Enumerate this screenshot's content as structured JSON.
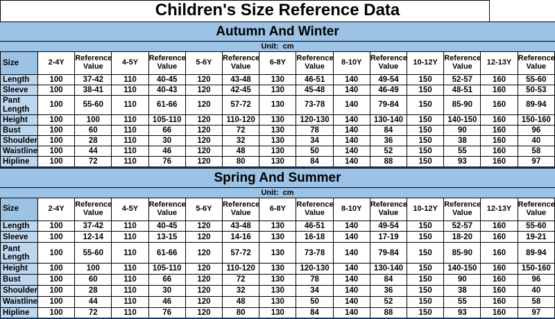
{
  "title": "Children's Size Reference Data",
  "columns": [
    "Size",
    "2-4Y",
    "Reference Value",
    "4-5Y",
    "Reference Value",
    "5-6Y",
    "Reference Value",
    "6-8Y",
    "Reference Value",
    "8-10Y",
    "Reference Value",
    "10-12Y",
    "Reference Value",
    "12-13Y",
    "Reference Value"
  ],
  "sections": [
    {
      "title": "Autumn And Winter",
      "unit_label": "Unit:  cm",
      "rows": [
        {
          "label": "Length",
          "values": [
            "100",
            "37-42",
            "110",
            "40-45",
            "120",
            "43-48",
            "130",
            "46-51",
            "140",
            "49-54",
            "150",
            "52-57",
            "160",
            "55-60"
          ]
        },
        {
          "label": "Sleeve",
          "values": [
            "100",
            "38-41",
            "110",
            "40-43",
            "120",
            "42-45",
            "130",
            "45-48",
            "140",
            "46-49",
            "150",
            "48-51",
            "160",
            "50-53"
          ]
        },
        {
          "label": "Pant Length",
          "values": [
            "100",
            "55-60",
            "110",
            "61-66",
            "120",
            "57-72",
            "130",
            "73-78",
            "140",
            "79-84",
            "150",
            "85-90",
            "160",
            "89-94"
          ]
        },
        {
          "label": "Height",
          "values": [
            "100",
            "100",
            "110",
            "105-110",
            "120",
            "110-120",
            "130",
            "120-130",
            "140",
            "130-140",
            "150",
            "140-150",
            "160",
            "150-160"
          ]
        },
        {
          "label": "Bust",
          "values": [
            "100",
            "60",
            "110",
            "66",
            "120",
            "72",
            "130",
            "78",
            "140",
            "84",
            "150",
            "90",
            "160",
            "96"
          ]
        },
        {
          "label": "Shoulder",
          "values": [
            "100",
            "28",
            "110",
            "30",
            "120",
            "32",
            "130",
            "34",
            "140",
            "36",
            "150",
            "38",
            "160",
            "40"
          ]
        },
        {
          "label": "Waistline",
          "values": [
            "100",
            "44",
            "110",
            "46",
            "120",
            "48",
            "130",
            "50",
            "140",
            "52",
            "150",
            "55",
            "160",
            "58"
          ]
        },
        {
          "label": "Hipline",
          "values": [
            "100",
            "72",
            "110",
            "76",
            "120",
            "80",
            "130",
            "84",
            "140",
            "88",
            "150",
            "93",
            "160",
            "97"
          ]
        }
      ]
    },
    {
      "title": "Spring And Summer",
      "unit_label": "Unit:  cm",
      "rows": [
        {
          "label": "Length",
          "values": [
            "100",
            "37-42",
            "110",
            "40-45",
            "120",
            "43-48",
            "130",
            "46-51",
            "140",
            "49-54",
            "150",
            "52-57",
            "160",
            "55-60"
          ]
        },
        {
          "label": "Sleeve",
          "values": [
            "100",
            "12-14",
            "110",
            "13-15",
            "120",
            "14-16",
            "130",
            "16-18",
            "140",
            "17-19",
            "150",
            "18-20",
            "160",
            "19-21"
          ]
        },
        {
          "label": "Pant Length",
          "values": [
            "100",
            "55-60",
            "110",
            "61-66",
            "120",
            "57-72",
            "130",
            "73-78",
            "140",
            "79-84",
            "150",
            "85-90",
            "160",
            "89-94"
          ]
        },
        {
          "label": "Height",
          "values": [
            "100",
            "100",
            "110",
            "105-110",
            "120",
            "110-120",
            "130",
            "120-130",
            "140",
            "130-140",
            "150",
            "140-150",
            "160",
            "150-160"
          ]
        },
        {
          "label": "Bust",
          "values": [
            "100",
            "60",
            "110",
            "66",
            "120",
            "72",
            "130",
            "78",
            "140",
            "84",
            "150",
            "90",
            "160",
            "96"
          ]
        },
        {
          "label": "Shoulder",
          "values": [
            "100",
            "28",
            "110",
            "30",
            "120",
            "32",
            "130",
            "34",
            "140",
            "36",
            "150",
            "38",
            "160",
            "40"
          ]
        },
        {
          "label": "Waistline",
          "values": [
            "100",
            "44",
            "110",
            "46",
            "120",
            "48",
            "130",
            "50",
            "140",
            "52",
            "150",
            "55",
            "160",
            "58"
          ]
        },
        {
          "label": "Hipline",
          "values": [
            "100",
            "72",
            "110",
            "76",
            "120",
            "80",
            "130",
            "84",
            "140",
            "88",
            "150",
            "93",
            "160",
            "97"
          ]
        }
      ]
    }
  ],
  "colors": {
    "band_blue": "#9CC2E5",
    "row_label_blue": "#BDD7EE",
    "grid_border": "#000000",
    "section_separator": "#17375E",
    "text": "#000000",
    "background": "#FFFFFF"
  }
}
